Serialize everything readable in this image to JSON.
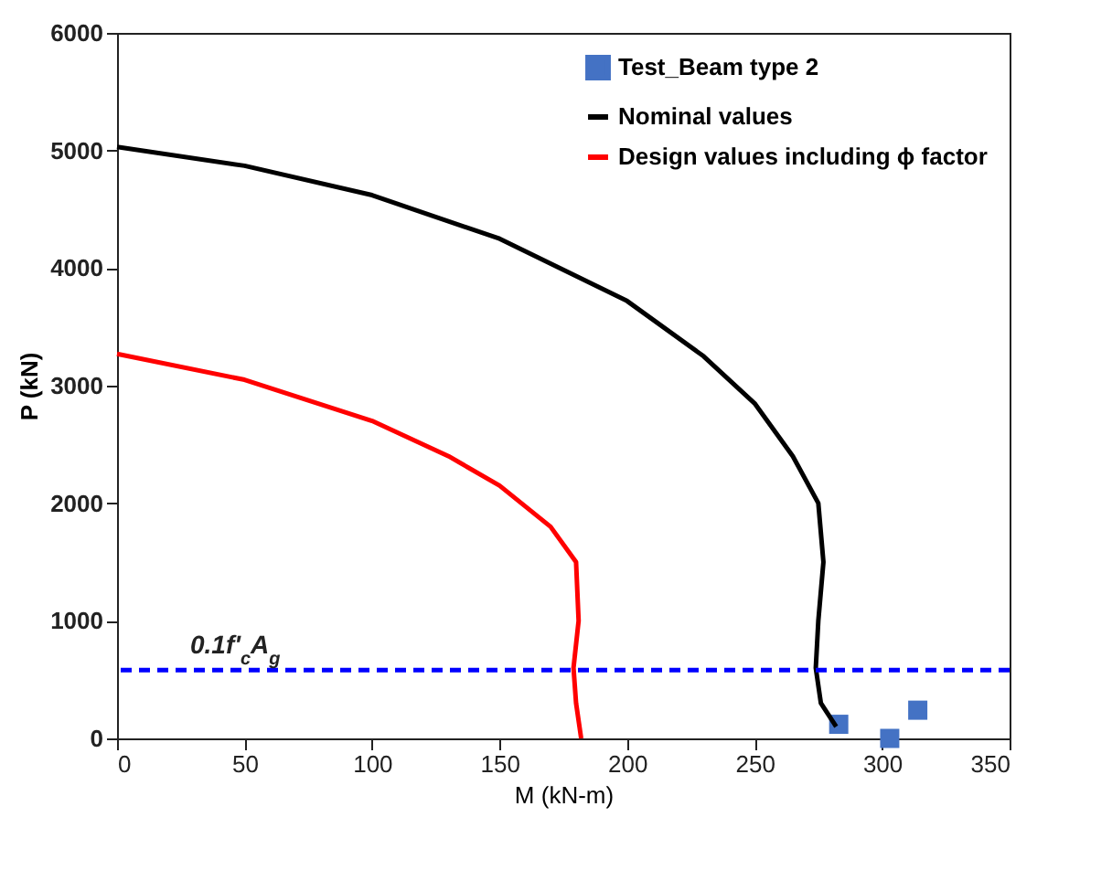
{
  "chart_data": {
    "type": "line",
    "xlabel": "M (kN-m)",
    "ylabel": "P (kN)",
    "xlim": [
      0,
      350
    ],
    "xticks": [
      0,
      50,
      100,
      150,
      200,
      250,
      300,
      350
    ],
    "ylim": [
      0,
      6000
    ],
    "yticks": [
      0,
      1000,
      2000,
      3000,
      4000,
      5000,
      6000
    ],
    "grid": false,
    "legend": "top right",
    "series": [
      {
        "name": "Test_Beam type 2",
        "type": "scatter",
        "marker": "square",
        "color": "#4472c4",
        "x": [
          283,
          303,
          314
        ],
        "values": [
          120,
          0,
          240
        ]
      },
      {
        "name": "Nominal values",
        "color": "#000000",
        "x": [
          0,
          50,
          100,
          150,
          200,
          230,
          250,
          265,
          275,
          277,
          275,
          274,
          276,
          282
        ],
        "values": [
          5030,
          4870,
          4620,
          4250,
          3720,
          3250,
          2850,
          2400,
          2000,
          1500,
          1000,
          600,
          300,
          100
        ]
      },
      {
        "name": "Design values including ϕ factor",
        "color": "#ff0000",
        "x": [
          0,
          50,
          100,
          130,
          150,
          170,
          180,
          181,
          179,
          180,
          182
        ],
        "values": [
          3270,
          3050,
          2700,
          2400,
          2150,
          1800,
          1500,
          1000,
          600,
          300,
          0
        ]
      }
    ],
    "ref_lines": [
      {
        "axis": "y",
        "value": 580,
        "label": "0.1f'$_{c}$A$_{g}$",
        "color": "#0000ff",
        "line_style": "dashed"
      }
    ]
  }
}
